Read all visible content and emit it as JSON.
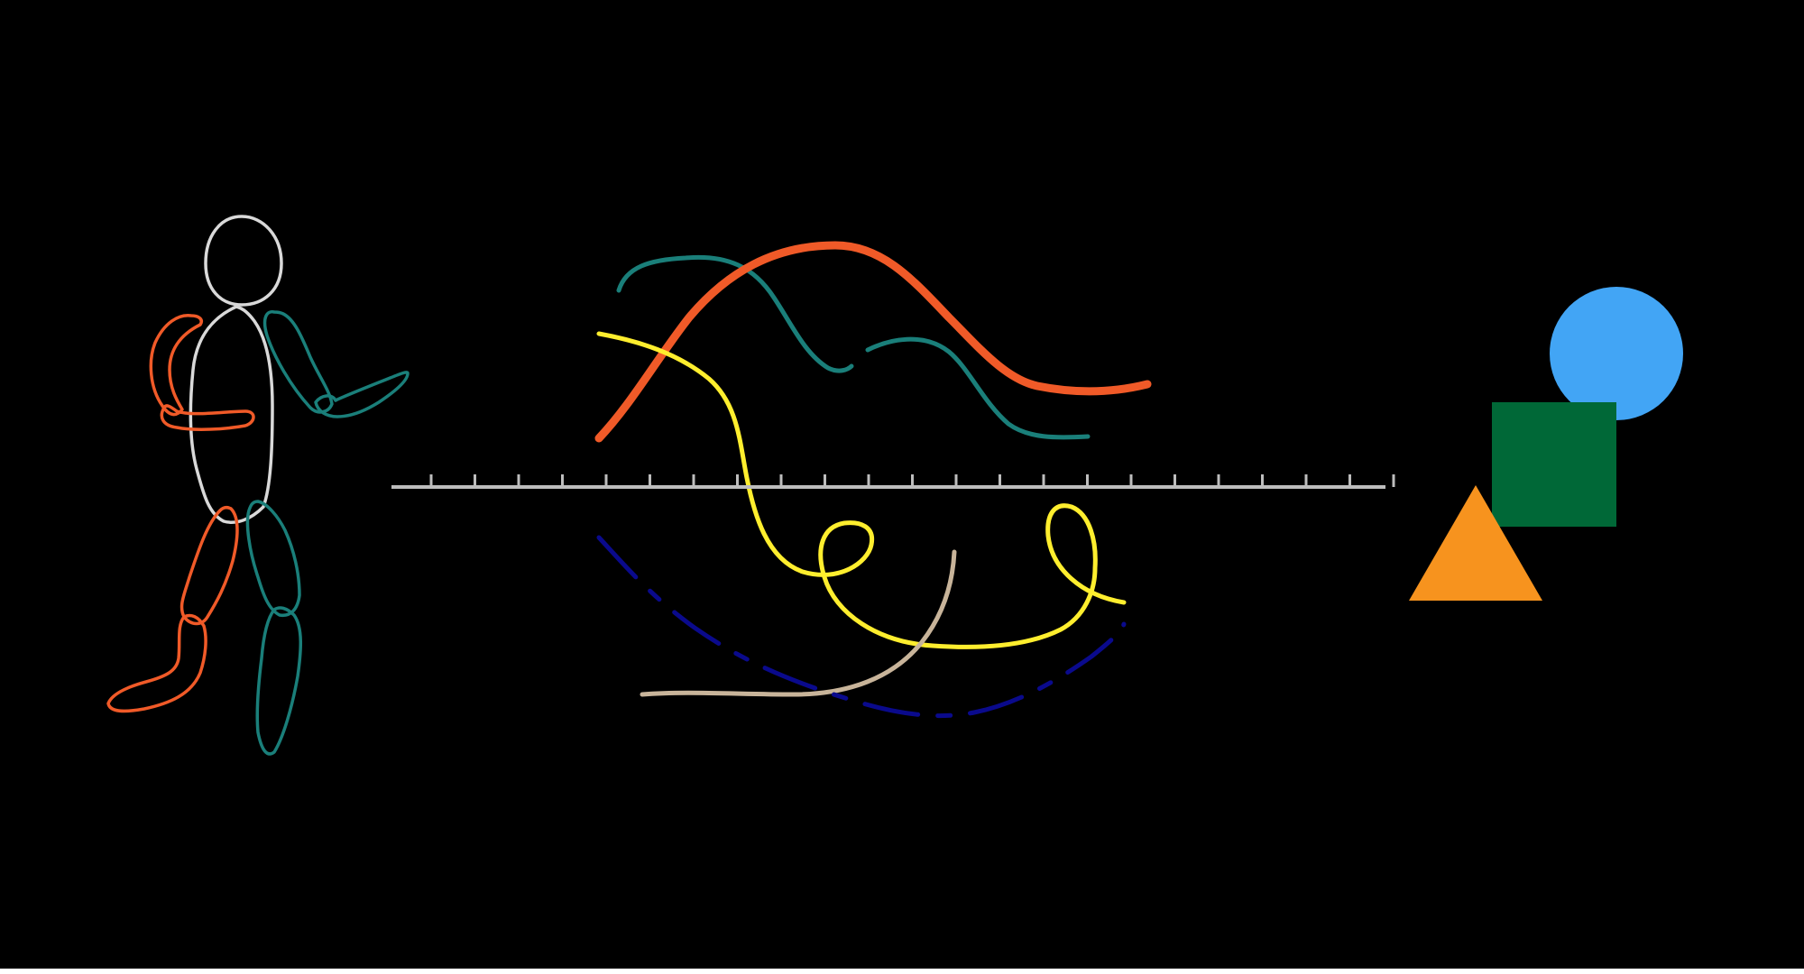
{
  "colors": {
    "background": "#000000",
    "figure_outline": "#d9d9d9",
    "orange": "#f05a28",
    "teal": "#1a7f7a",
    "yellow": "#ffee2e",
    "navy": "#0a0a8c",
    "tan": "#c8b49a",
    "timeline": "#bdbdbd",
    "shape_circle": "#42a5f5",
    "shape_square": "#006837",
    "shape_triangle": "#f7931e",
    "strip": "#ffffff"
  },
  "icons": {
    "figure": "mannequin-figure-icon",
    "timeline": "timeline-ruler-icon",
    "shapes": "geometric-shapes-icon"
  }
}
